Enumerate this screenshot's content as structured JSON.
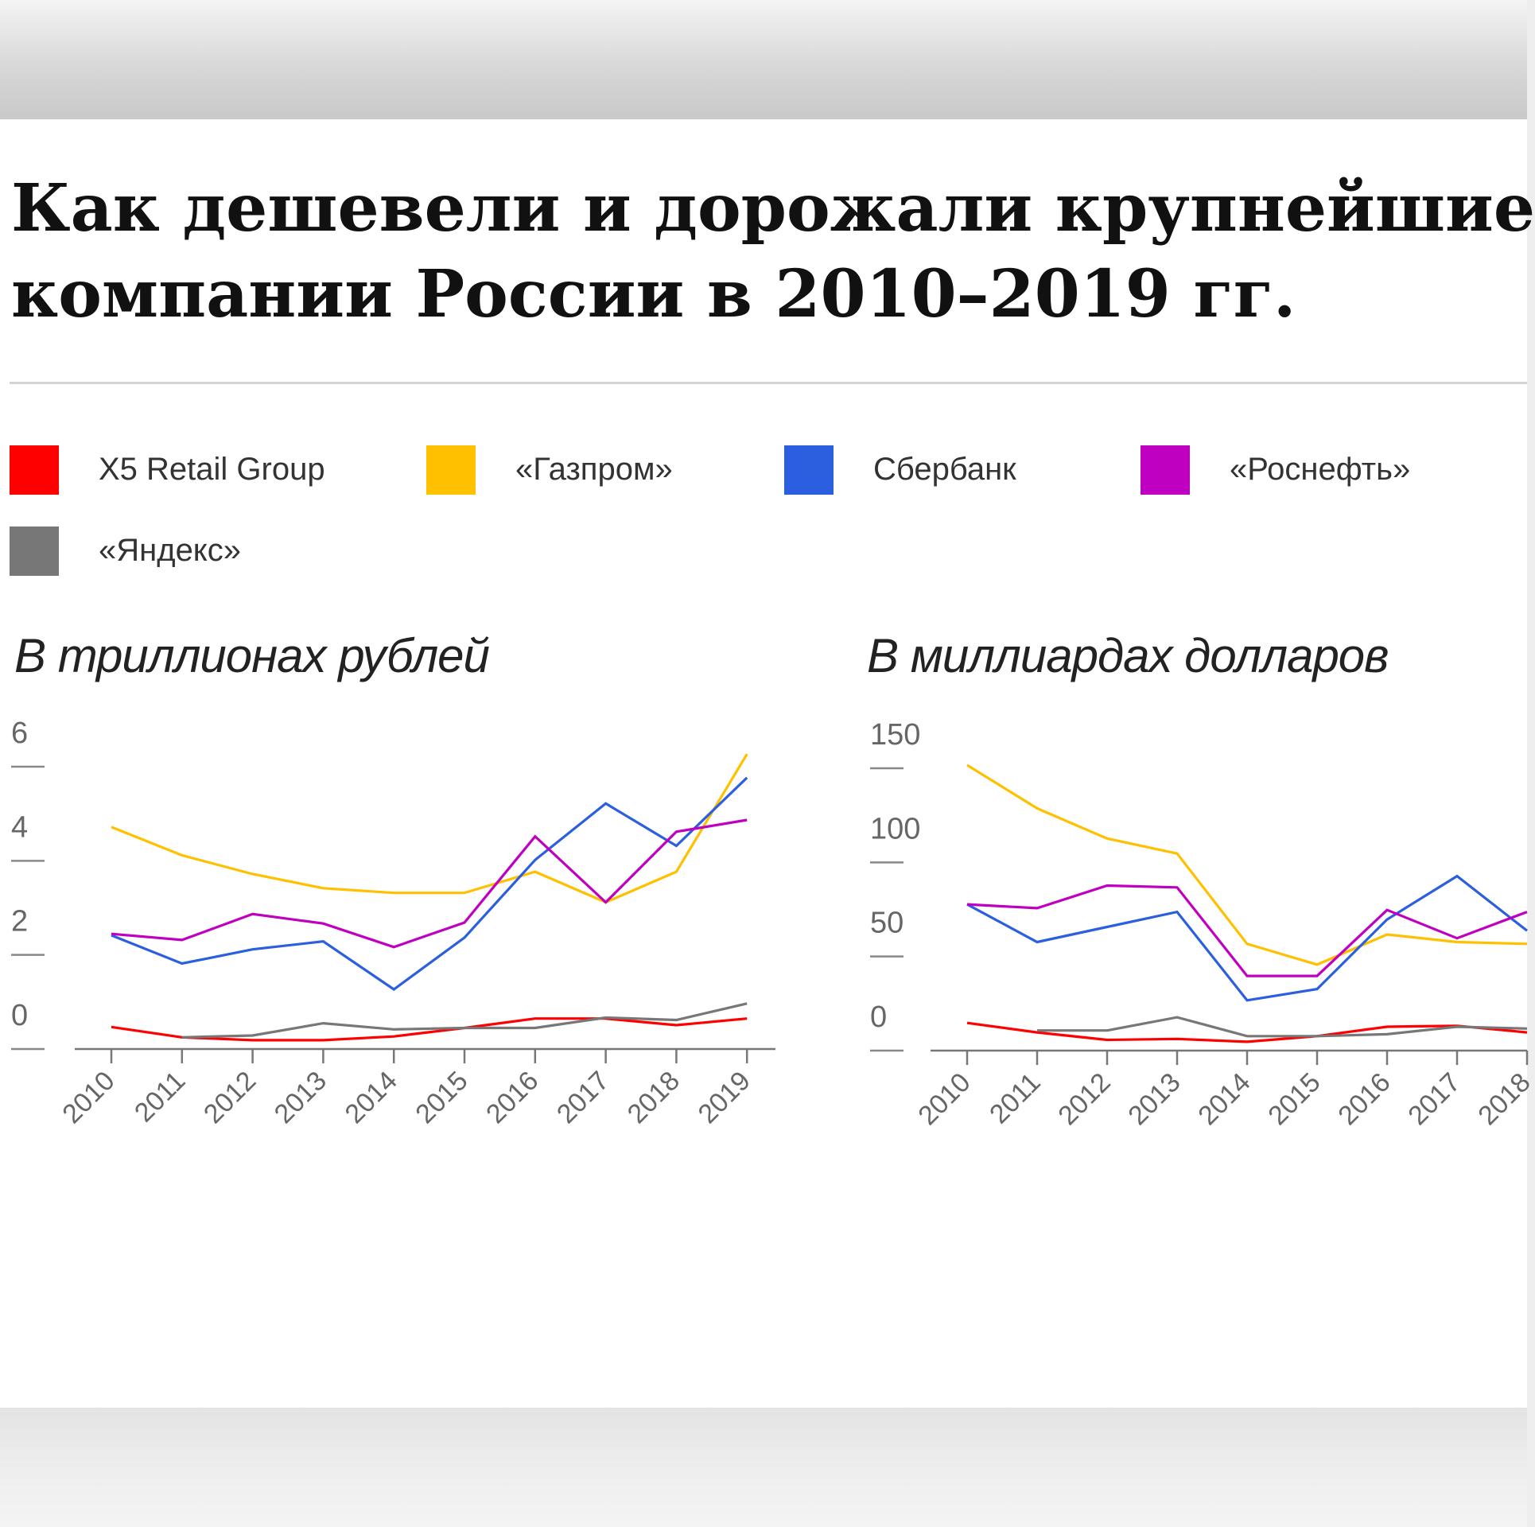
{
  "title_line1": "Как дешевели и дорожали крупнейшие",
  "title_line2": "компании России в 2010–2019 гг.",
  "legend": [
    {
      "label": "X5 Retail Group",
      "color": "#ff0000"
    },
    {
      "label": "«Газпром»",
      "color": "#ffc000"
    },
    {
      "label": "Сбербанк",
      "color": "#2b5fe0"
    },
    {
      "label": "«Роснефть»",
      "color": "#c000c0"
    },
    {
      "label": "«Яндекс»",
      "color": "#777777"
    }
  ],
  "chart_data": [
    {
      "type": "line",
      "title": "В триллионах рублей",
      "x": [
        "2010",
        "2011",
        "2012",
        "2013",
        "2014",
        "2015",
        "2016",
        "2017",
        "2018",
        "2019"
      ],
      "yticks": [
        0,
        2,
        4,
        6
      ],
      "ylim": [
        0,
        6
      ],
      "grid": false,
      "series": [
        {
          "name": "X5 Retail Group",
          "color": "#ff0000",
          "values": [
            0.4,
            0.18,
            0.12,
            0.12,
            0.2,
            0.38,
            0.58,
            0.58,
            0.44,
            0.58
          ]
        },
        {
          "name": "«Газпром»",
          "color": "#ffc000",
          "values": [
            4.65,
            4.05,
            3.65,
            3.35,
            3.25,
            3.25,
            3.7,
            3.05,
            3.7,
            6.2
          ]
        },
        {
          "name": "Сбербанк",
          "color": "#2b5fe0",
          "values": [
            2.35,
            1.75,
            2.05,
            2.22,
            1.2,
            2.3,
            3.95,
            5.15,
            4.25,
            5.7
          ]
        },
        {
          "name": "«Роснефть»",
          "color": "#c000c0",
          "values": [
            2.38,
            2.25,
            2.8,
            2.6,
            2.1,
            2.62,
            4.45,
            3.05,
            4.55,
            4.8
          ]
        },
        {
          "name": "«Яндекс»",
          "color": "#777777",
          "values": null,
          "values_partial": [
            null,
            0.18,
            0.22,
            0.48,
            0.35,
            0.38,
            0.38,
            0.6,
            0.55,
            0.9
          ]
        }
      ]
    },
    {
      "type": "line",
      "title": "В миллиардах долларов",
      "x": [
        "2010",
        "2011",
        "2012",
        "2013",
        "2014",
        "2015",
        "2016",
        "2017",
        "2018"
      ],
      "yticks": [
        0,
        50,
        100,
        150
      ],
      "ylim": [
        0,
        150
      ],
      "grid": false,
      "series": [
        {
          "name": "X5 Retail Group",
          "color": "#ff0000",
          "values": [
            13,
            8,
            4,
            4.5,
            3,
            6,
            11,
            11.5,
            8
          ]
        },
        {
          "name": "«Газпром»",
          "color": "#ffc000",
          "values": [
            150,
            127,
            111,
            103,
            55,
            44,
            60,
            56,
            55
          ]
        },
        {
          "name": "Сбербанк",
          "color": "#2b5fe0",
          "values": [
            76,
            56,
            64,
            72,
            25,
            31,
            68,
            91,
            62
          ]
        },
        {
          "name": "«Роснефть»",
          "color": "#c000c0",
          "values": [
            76,
            74,
            86,
            85,
            38,
            38,
            73,
            58,
            72
          ]
        },
        {
          "name": "«Яндекс»",
          "color": "#777777",
          "values": [
            null,
            9,
            9,
            16,
            6,
            6,
            7,
            11,
            10
          ]
        }
      ]
    }
  ]
}
